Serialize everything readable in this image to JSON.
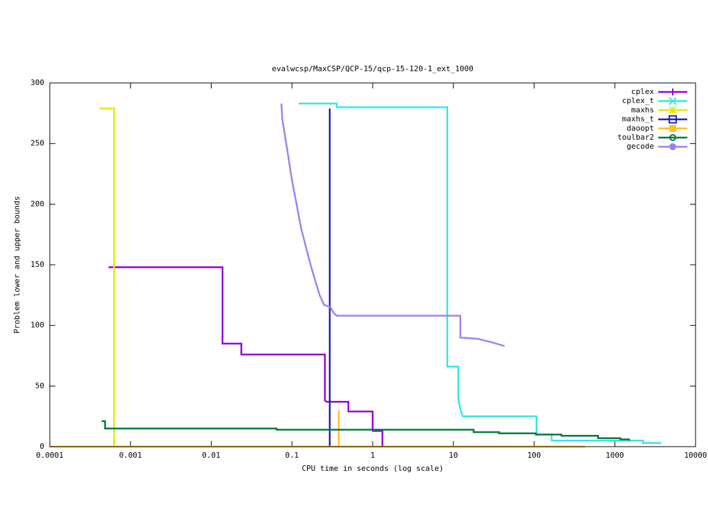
{
  "chart_data": {
    "type": "line",
    "title": "evalwcsp/MaxCSP/QCP-15/qcp-15-120-1_ext_1000",
    "xlabel": "CPU time in seconds (log scale)",
    "ylabel": "Problem lower and upper bounds",
    "xscale": "log",
    "xlim": [
      0.0001,
      10000
    ],
    "xticks": [
      0.0001,
      0.001,
      0.01,
      0.1,
      1,
      10,
      100,
      1000,
      10000
    ],
    "ylim": [
      0,
      300
    ],
    "yticks": [
      0,
      50,
      100,
      150,
      200,
      250,
      300
    ],
    "legend": "upper right",
    "series": [
      {
        "name": "cplex",
        "color": "#9400d3",
        "marker": "plus",
        "x": [
          0.000535,
          0.0138,
          0.0138,
          0.0236,
          0.0236,
          0.256,
          0.256,
          0.27,
          0.5,
          0.5,
          1.0,
          1.0,
          1.32,
          1.32
        ],
        "values": [
          148,
          148,
          85,
          85,
          76,
          76,
          38,
          37,
          37,
          29,
          29,
          13,
          13,
          0
        ]
      },
      {
        "name": "cplex_t",
        "color": "#33e6e6",
        "marker": "cross",
        "x": [
          0.121,
          0.359,
          0.359,
          8.4,
          8.4,
          11.5,
          11.5,
          12,
          13,
          107,
          107,
          165,
          165,
          2230,
          2230,
          3660,
          3660
        ],
        "values": [
          283,
          283,
          280,
          280,
          66,
          66,
          40,
          33,
          25,
          25,
          10,
          10,
          5,
          5,
          3,
          3,
          2
        ]
      },
      {
        "name": "maxhs",
        "color": "#e6e600",
        "marker": "star",
        "x": [
          0.000414,
          0.000626,
          0.000626
        ],
        "values": [
          279,
          279,
          0
        ]
      },
      {
        "name": "maxhs_t",
        "color": "#2020b0",
        "marker": "square",
        "x": [
          0.294,
          0.294
        ],
        "values": [
          279,
          0
        ]
      },
      {
        "name": "daoopt",
        "color": "#ffc020",
        "marker": "filled-square",
        "x": [
          0.0001,
          0.38,
          0.38,
          0.38,
          427
        ],
        "values": [
          0,
          0,
          30,
          0,
          0
        ]
      },
      {
        "name": "toulbar2",
        "color": "#007840",
        "marker": "circle",
        "x": [
          0.000439,
          0.000484,
          0.000484,
          0.0645,
          0.0645,
          17.8,
          17.8,
          36.9,
          36.9,
          105,
          105,
          218,
          218,
          620,
          620,
          1170,
          1170,
          1500,
          1500
        ],
        "values": [
          21,
          21,
          15,
          15,
          14,
          14,
          12,
          12,
          11,
          11,
          10,
          10,
          9,
          9,
          7,
          7,
          6,
          6,
          5
        ]
      },
      {
        "name": "gecode",
        "color": "#a080f0",
        "marker": "filled-circle",
        "x": [
          0.074,
          0.076,
          0.085,
          0.1,
          0.13,
          0.17,
          0.22,
          0.25,
          0.3,
          0.33,
          0.36,
          12.2,
          12.2,
          20,
          30,
          43
        ],
        "values": [
          283,
          270,
          250,
          220,
          180,
          150,
          125,
          117,
          115,
          110,
          108,
          108,
          90,
          89,
          86,
          83
        ]
      }
    ]
  }
}
